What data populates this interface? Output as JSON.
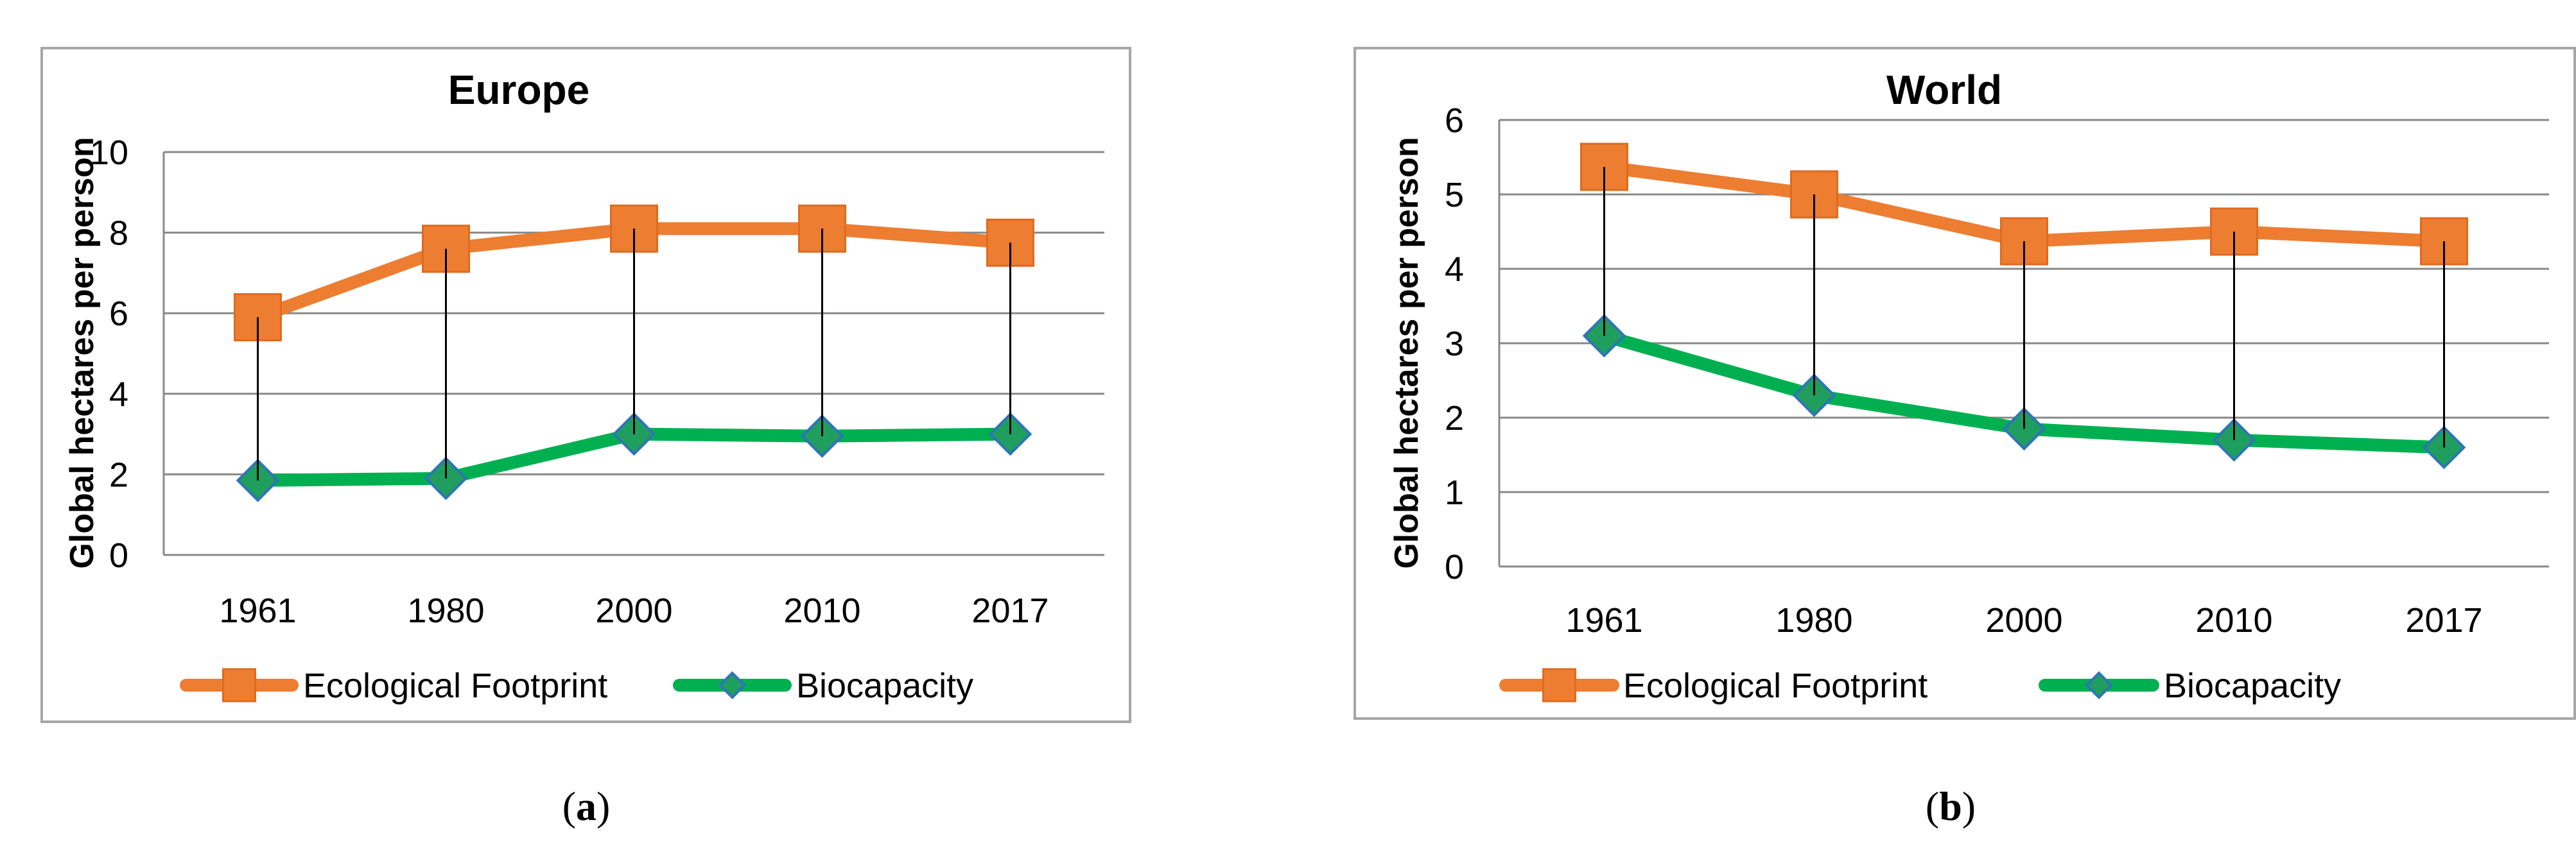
{
  "chart_data": [
    {
      "type": "line",
      "title": "Europe",
      "caption_letter": "a",
      "xlabel": "",
      "ylabel": "Global hectares per person",
      "categories": [
        "1961",
        "1980",
        "2000",
        "2010",
        "2017"
      ],
      "ylim": [
        0,
        10
      ],
      "yticks": [
        0,
        2,
        4,
        6,
        8,
        10
      ],
      "grid": true,
      "legend": "bottom",
      "series": [
        {
          "name": "Ecological Footprint",
          "values": [
            5.9,
            7.6,
            8.1,
            8.1,
            7.75
          ],
          "color": "#ED7D31",
          "marker": "square"
        },
        {
          "name": "Biocapacity",
          "values": [
            1.85,
            1.9,
            3.0,
            2.95,
            3.0
          ],
          "color": "#00B050",
          "marker": "diamond",
          "marker_color": "#1F9E5E"
        }
      ],
      "drop_lines": true
    },
    {
      "type": "line",
      "title": "World",
      "caption_letter": "b",
      "xlabel": "",
      "ylabel": "Global hectares per person",
      "categories": [
        "1961",
        "1980",
        "2000",
        "2010",
        "2017"
      ],
      "ylim": [
        0,
        6
      ],
      "yticks": [
        0,
        1,
        2,
        3,
        4,
        5,
        6
      ],
      "grid": true,
      "legend": "bottom",
      "series": [
        {
          "name": "Ecological Footprint",
          "values": [
            5.37,
            5.0,
            4.37,
            4.5,
            4.37
          ],
          "color": "#ED7D31",
          "marker": "square"
        },
        {
          "name": "Biocapacity",
          "values": [
            3.1,
            2.3,
            1.85,
            1.7,
            1.6
          ],
          "color": "#00B050",
          "marker": "diamond",
          "marker_color": "#1F9E5E"
        }
      ],
      "drop_lines": true
    }
  ],
  "colors": {
    "frame": "#A6A6A6",
    "gridline": "#888888",
    "drop_line": "#000000"
  }
}
